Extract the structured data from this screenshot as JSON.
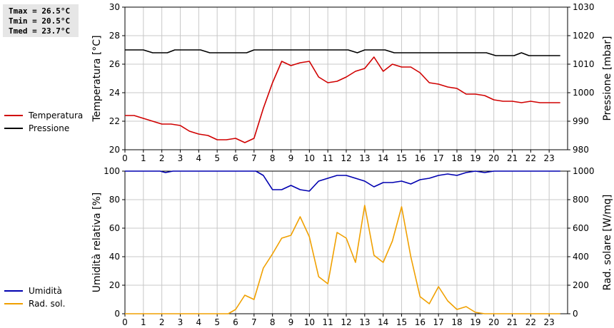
{
  "stats": {
    "tmax": "Tmax = 26.5°C",
    "tmin": "Tmin = 20.5°C",
    "tmed": "Tmed = 23.7°C"
  },
  "colors": {
    "temperature": "#d00000",
    "pressure": "#000000",
    "humidity": "#0000b0",
    "solar": "#f0a000",
    "grid": "#c8c8c8"
  },
  "chart_data": [
    {
      "type": "line",
      "xlabel": "",
      "ylabel_left": "Temperatura [°C]",
      "ylabel_right": "Pressione [mbar]",
      "xlim": [
        0,
        24
      ],
      "x_ticks": [
        0,
        1,
        2,
        3,
        4,
        5,
        6,
        7,
        8,
        9,
        10,
        11,
        12,
        13,
        14,
        15,
        16,
        17,
        18,
        19,
        20,
        21,
        22,
        23
      ],
      "ylim_left": [
        20,
        30
      ],
      "y_ticks_left": [
        20,
        22,
        24,
        26,
        28,
        30
      ],
      "ylim_right": [
        980,
        1030
      ],
      "y_ticks_right": [
        980,
        990,
        1000,
        1010,
        1020,
        1030
      ],
      "grid": true,
      "legend": "left",
      "series": [
        {
          "name": "Temperatura",
          "axis": "left",
          "color": "#d00000",
          "points": [
            [
              0,
              22.4
            ],
            [
              0.5,
              22.4
            ],
            [
              1,
              22.2
            ],
            [
              1.5,
              22.0
            ],
            [
              2,
              21.8
            ],
            [
              2.5,
              21.8
            ],
            [
              3,
              21.7
            ],
            [
              3.5,
              21.3
            ],
            [
              4,
              21.1
            ],
            [
              4.5,
              21.0
            ],
            [
              5,
              20.7
            ],
            [
              5.5,
              20.7
            ],
            [
              6,
              20.8
            ],
            [
              6.5,
              20.5
            ],
            [
              7,
              20.8
            ],
            [
              7.5,
              22.9
            ],
            [
              8,
              24.7
            ],
            [
              8.5,
              26.2
            ],
            [
              9,
              25.9
            ],
            [
              9.5,
              26.1
            ],
            [
              10,
              26.2
            ],
            [
              10.5,
              25.1
            ],
            [
              11,
              24.7
            ],
            [
              11.5,
              24.8
            ],
            [
              12,
              25.1
            ],
            [
              12.5,
              25.5
            ],
            [
              13,
              25.7
            ],
            [
              13.5,
              26.5
            ],
            [
              14,
              25.5
            ],
            [
              14.5,
              26.0
            ],
            [
              15,
              25.8
            ],
            [
              15.5,
              25.8
            ],
            [
              16,
              25.4
            ],
            [
              16.5,
              24.7
            ],
            [
              17,
              24.6
            ],
            [
              17.5,
              24.4
            ],
            [
              18,
              24.3
            ],
            [
              18.5,
              23.9
            ],
            [
              19,
              23.9
            ],
            [
              19.5,
              23.8
            ],
            [
              20,
              23.5
            ],
            [
              20.5,
              23.4
            ],
            [
              21,
              23.4
            ],
            [
              21.5,
              23.3
            ],
            [
              22,
              23.4
            ],
            [
              22.5,
              23.3
            ],
            [
              23,
              23.3
            ],
            [
              23.6,
              23.3
            ]
          ]
        },
        {
          "name": "Pressione",
          "axis": "right",
          "color": "#000000",
          "points": [
            [
              0,
              1015
            ],
            [
              1,
              1015
            ],
            [
              1.5,
              1014
            ],
            [
              2.3,
              1014
            ],
            [
              2.7,
              1015
            ],
            [
              4.1,
              1015
            ],
            [
              4.6,
              1014
            ],
            [
              6.6,
              1014
            ],
            [
              7,
              1015
            ],
            [
              12.1,
              1015
            ],
            [
              12.6,
              1014
            ],
            [
              13,
              1015
            ],
            [
              14.1,
              1015
            ],
            [
              14.6,
              1014
            ],
            [
              19.6,
              1014
            ],
            [
              20.1,
              1013
            ],
            [
              21.1,
              1013
            ],
            [
              21.5,
              1014
            ],
            [
              21.9,
              1013
            ],
            [
              23.6,
              1013
            ]
          ]
        }
      ]
    },
    {
      "type": "line",
      "xlabel": "",
      "ylabel_left": "Umidità relativa [%]",
      "ylabel_right": "Rad. solare [W/mq]",
      "xlim": [
        0,
        24
      ],
      "x_ticks": [
        0,
        1,
        2,
        3,
        4,
        5,
        6,
        7,
        8,
        9,
        10,
        11,
        12,
        13,
        14,
        15,
        16,
        17,
        18,
        19,
        20,
        21,
        22,
        23
      ],
      "ylim_left": [
        0,
        100
      ],
      "y_ticks_left": [
        0,
        20,
        40,
        60,
        80,
        100
      ],
      "ylim_right": [
        0,
        1000
      ],
      "y_ticks_right": [
        0,
        200,
        400,
        600,
        800,
        1000
      ],
      "grid": true,
      "legend": "left",
      "series": [
        {
          "name": "Umidità",
          "axis": "left",
          "color": "#0000b0",
          "points": [
            [
              0,
              100
            ],
            [
              1.9,
              100
            ],
            [
              2.2,
              99
            ],
            [
              2.6,
              100
            ],
            [
              7.1,
              100
            ],
            [
              7.5,
              97
            ],
            [
              8,
              87
            ],
            [
              8.5,
              87
            ],
            [
              9,
              90
            ],
            [
              9.5,
              87
            ],
            [
              10,
              86
            ],
            [
              10.5,
              93
            ],
            [
              11,
              95
            ],
            [
              11.5,
              97
            ],
            [
              12,
              97
            ],
            [
              12.5,
              95
            ],
            [
              13,
              93
            ],
            [
              13.5,
              89
            ],
            [
              14,
              92
            ],
            [
              14.5,
              92
            ],
            [
              15,
              93
            ],
            [
              15.5,
              91
            ],
            [
              16,
              94
            ],
            [
              16.5,
              95
            ],
            [
              17,
              97
            ],
            [
              17.5,
              98
            ],
            [
              18,
              97
            ],
            [
              18.5,
              99
            ],
            [
              19,
              100
            ],
            [
              19.5,
              99
            ],
            [
              20,
              100
            ],
            [
              23.6,
              100
            ]
          ]
        },
        {
          "name": "Rad. sol.",
          "axis": "right",
          "color": "#f0a000",
          "points": [
            [
              0,
              0
            ],
            [
              5.6,
              0
            ],
            [
              6,
              30
            ],
            [
              6.5,
              130
            ],
            [
              7,
              100
            ],
            [
              7.5,
              320
            ],
            [
              8,
              420
            ],
            [
              8.5,
              530
            ],
            [
              9,
              550
            ],
            [
              9.5,
              680
            ],
            [
              10,
              540
            ],
            [
              10.5,
              260
            ],
            [
              11,
              210
            ],
            [
              11.5,
              570
            ],
            [
              12,
              530
            ],
            [
              12.5,
              360
            ],
            [
              13,
              760
            ],
            [
              13.5,
              410
            ],
            [
              14,
              360
            ],
            [
              14.5,
              510
            ],
            [
              15,
              750
            ],
            [
              15.5,
              400
            ],
            [
              16,
              120
            ],
            [
              16.5,
              70
            ],
            [
              17,
              190
            ],
            [
              17.5,
              90
            ],
            [
              18,
              30
            ],
            [
              18.5,
              50
            ],
            [
              19,
              10
            ],
            [
              19.5,
              0
            ],
            [
              23.6,
              0
            ]
          ]
        }
      ]
    }
  ]
}
